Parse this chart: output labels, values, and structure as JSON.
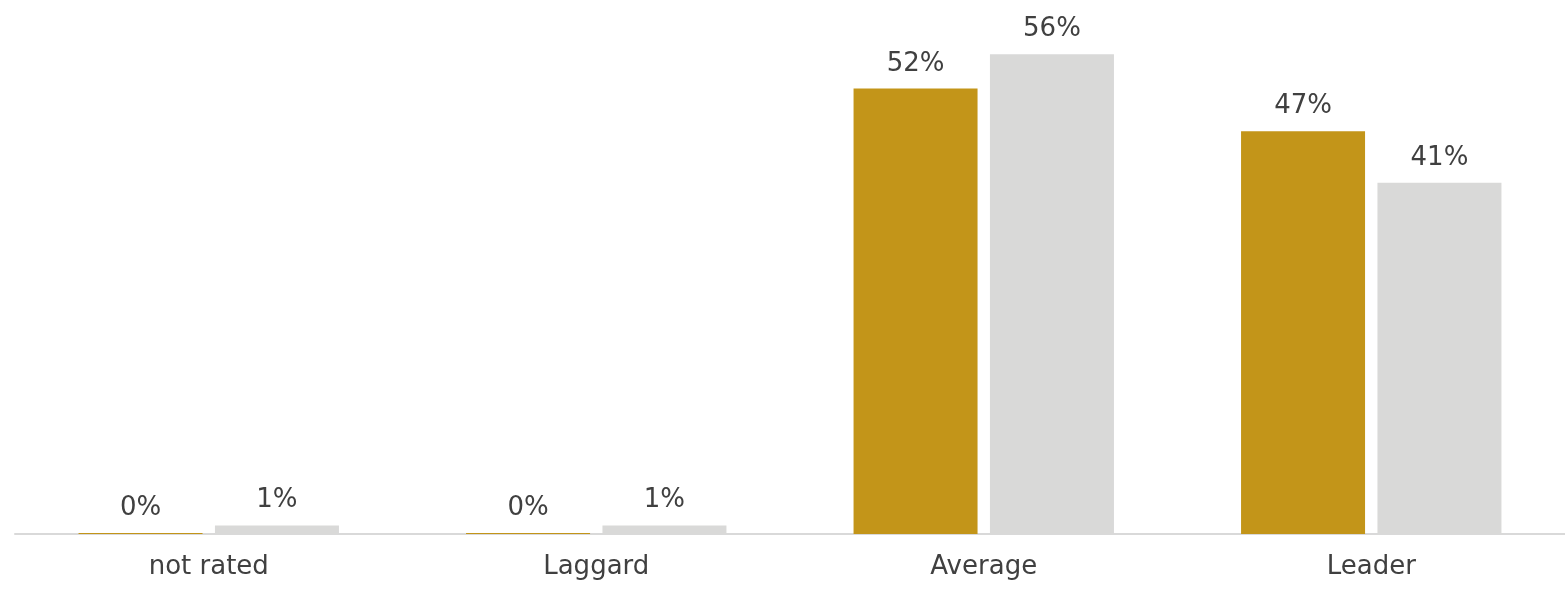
{
  "chart_data": {
    "type": "bar",
    "categories": [
      "not rated",
      "Laggard",
      "Average",
      "Leader"
    ],
    "series": [
      {
        "color": "#c39519",
        "values": [
          0,
          0,
          52,
          47
        ],
        "value_labels": [
          "0%",
          "0%",
          "52%",
          "47%"
        ]
      },
      {
        "color": "#d9d9d8",
        "values": [
          1,
          1,
          56,
          41
        ],
        "value_labels": [
          "1%",
          "1%",
          "56%",
          "41%"
        ]
      }
    ]
  }
}
